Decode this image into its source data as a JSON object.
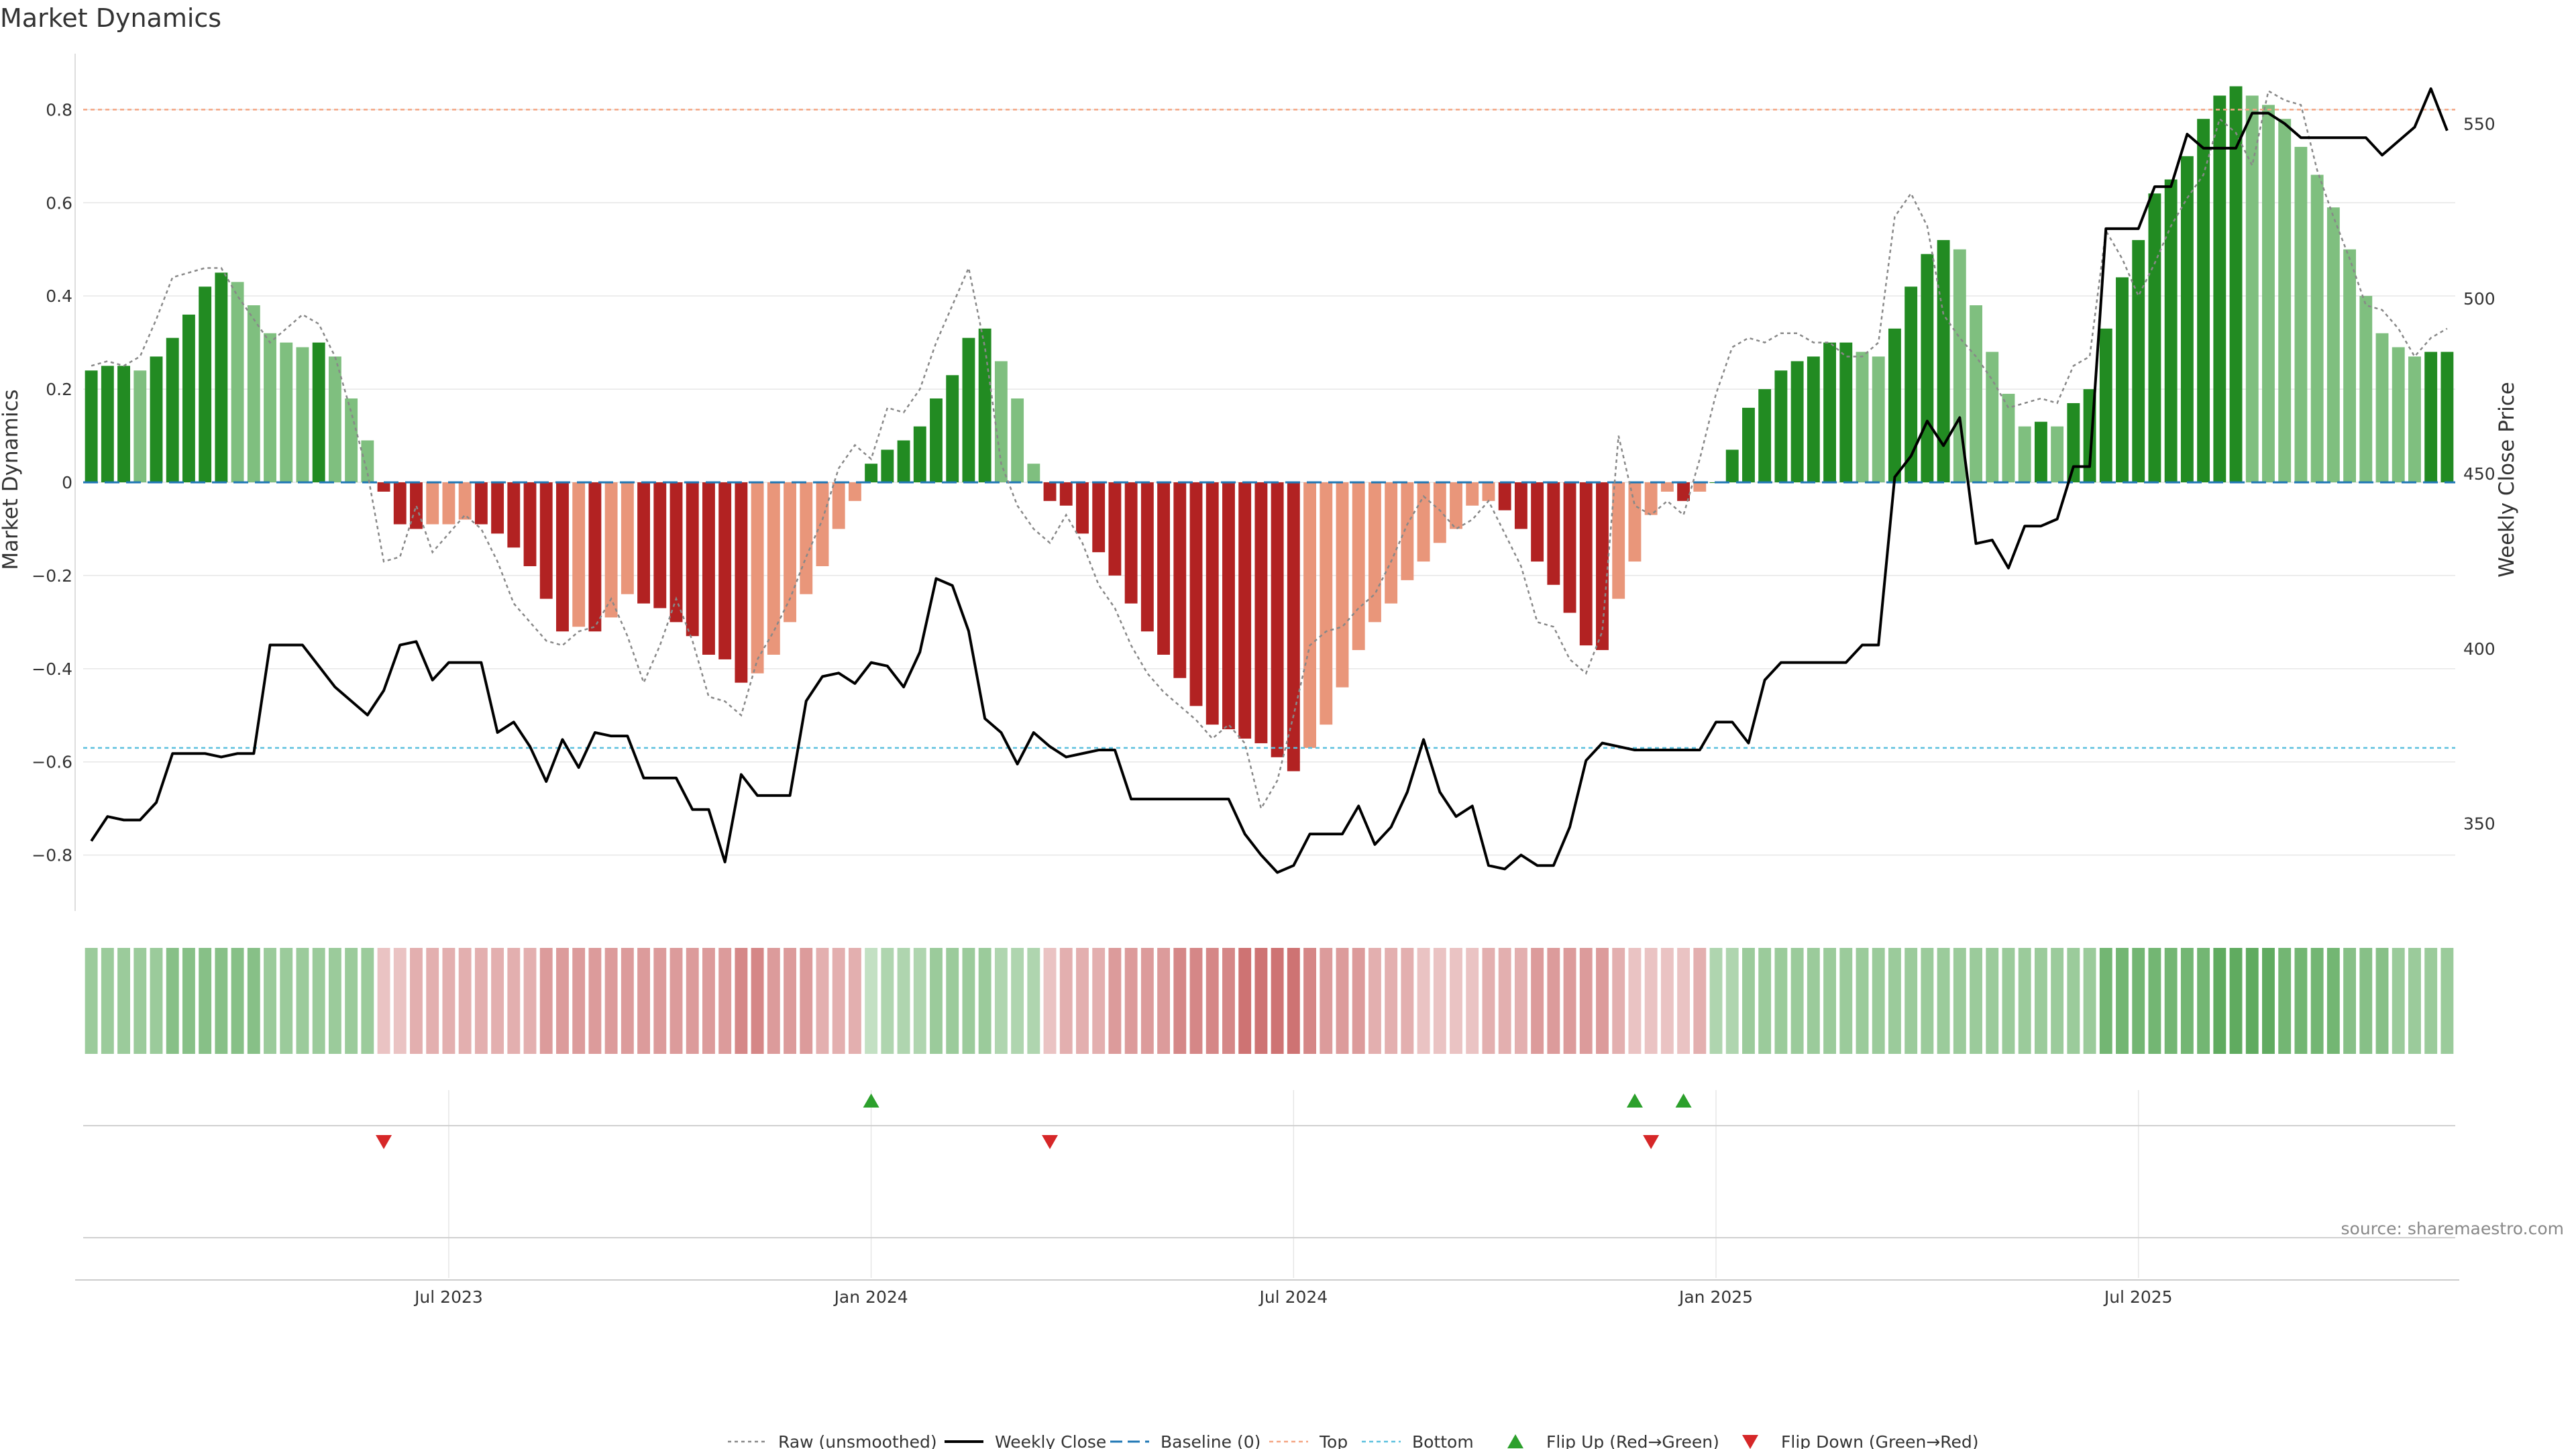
{
  "chart_data": {
    "type": "bar",
    "title": "Market Dynamics",
    "ylabel_left": "Market Dynamics",
    "ylabel_right": "Weekly Close Price",
    "source": "source: sharemaestro.com",
    "ylim_left": [
      -0.92,
      0.92
    ],
    "ylim_right": [
      325,
      570
    ],
    "yticks_left": [
      -0.8,
      -0.6,
      -0.4,
      -0.2,
      0,
      0.2,
      0.4,
      0.6,
      0.8
    ],
    "ytick_labels_left": [
      "−0.8",
      "−0.6",
      "−0.4",
      "−0.2",
      "0",
      "0.2",
      "0.4",
      "0.6",
      "0.8"
    ],
    "yticks_right": [
      350,
      400,
      450,
      500,
      550
    ],
    "ytick_labels_right": [
      "350",
      "400",
      "450",
      "500",
      "550"
    ],
    "xticks": [
      {
        "label": "Jul 2023",
        "index": 22
      },
      {
        "label": "Jan 2024",
        "index": 48
      },
      {
        "label": "Jul 2024",
        "index": 74
      },
      {
        "label": "Jan 2025",
        "index": 100
      },
      {
        "label": "Jul 2025",
        "index": 126
      }
    ],
    "top_level": 0.8,
    "bottom_level": -0.57,
    "colors": {
      "strong_green": "#228B22",
      "light_green": "#7FBF7F",
      "strong_red": "#B22222",
      "light_red": "#E9967A",
      "close_line": "#000000",
      "raw_line": "#888888",
      "baseline": "#1F77B4",
      "top": "#F4A582",
      "bottom": "#5BC0DE",
      "flip_up": "#2CA02C",
      "flip_down": "#D62728",
      "grid": "#E6E6E6"
    },
    "series": [
      {
        "name": "Market Dynamics (smoothed)",
        "values": [
          0.24,
          0.25,
          0.25,
          0.24,
          0.27,
          0.31,
          0.36,
          0.42,
          0.45,
          0.43,
          0.38,
          0.32,
          0.3,
          0.29,
          0.3,
          0.27,
          0.18,
          0.09,
          -0.02,
          -0.09,
          -0.1,
          -0.09,
          -0.09,
          -0.08,
          -0.09,
          -0.11,
          -0.14,
          -0.18,
          -0.25,
          -0.32,
          -0.31,
          -0.32,
          -0.29,
          -0.24,
          -0.26,
          -0.27,
          -0.3,
          -0.33,
          -0.37,
          -0.38,
          -0.43,
          -0.41,
          -0.37,
          -0.3,
          -0.24,
          -0.18,
          -0.1,
          -0.04,
          0.04,
          0.07,
          0.09,
          0.12,
          0.18,
          0.23,
          0.31,
          0.33,
          0.26,
          0.18,
          0.04,
          -0.04,
          -0.05,
          -0.11,
          -0.15,
          -0.2,
          -0.26,
          -0.32,
          -0.37,
          -0.42,
          -0.48,
          -0.52,
          -0.53,
          -0.55,
          -0.56,
          -0.59,
          -0.62,
          -0.57,
          -0.52,
          -0.44,
          -0.36,
          -0.3,
          -0.26,
          -0.21,
          -0.17,
          -0.13,
          -0.1,
          -0.05,
          -0.04,
          -0.06,
          -0.1,
          -0.17,
          -0.22,
          -0.28,
          -0.35,
          -0.36,
          -0.25,
          -0.17,
          -0.07,
          -0.02,
          -0.04,
          -0.02,
          0.0,
          0.07,
          0.16,
          0.2,
          0.24,
          0.26,
          0.27,
          0.3,
          0.3,
          0.28,
          0.27,
          0.33,
          0.42,
          0.49,
          0.52,
          0.5,
          0.38,
          0.28,
          0.19,
          0.12,
          0.13,
          0.12,
          0.17,
          0.2,
          0.33,
          0.44,
          0.52,
          0.62,
          0.65,
          0.7,
          0.78,
          0.83,
          0.85,
          0.83,
          0.81,
          0.78,
          0.72,
          0.66,
          0.59,
          0.5,
          0.4,
          0.32,
          0.29,
          0.27,
          0.28,
          0.28
        ]
      },
      {
        "name": "Raw (unsmoothed)",
        "values": [
          0.25,
          0.26,
          0.25,
          0.27,
          0.35,
          0.44,
          0.45,
          0.46,
          0.46,
          0.4,
          0.35,
          0.3,
          0.33,
          0.36,
          0.34,
          0.27,
          0.15,
          0.02,
          -0.17,
          -0.16,
          -0.05,
          -0.15,
          -0.11,
          -0.07,
          -0.1,
          -0.17,
          -0.26,
          -0.3,
          -0.34,
          -0.35,
          -0.32,
          -0.31,
          -0.25,
          -0.33,
          -0.43,
          -0.35,
          -0.25,
          -0.34,
          -0.46,
          -0.47,
          -0.5,
          -0.38,
          -0.32,
          -0.25,
          -0.16,
          -0.08,
          0.03,
          0.08,
          0.05,
          0.16,
          0.15,
          0.2,
          0.3,
          0.38,
          0.46,
          0.29,
          0.04,
          -0.05,
          -0.1,
          -0.13,
          -0.07,
          -0.13,
          -0.22,
          -0.27,
          -0.35,
          -0.41,
          -0.45,
          -0.48,
          -0.51,
          -0.55,
          -0.52,
          -0.56,
          -0.7,
          -0.64,
          -0.5,
          -0.35,
          -0.32,
          -0.31,
          -0.27,
          -0.24,
          -0.17,
          -0.09,
          -0.03,
          -0.06,
          -0.1,
          -0.08,
          -0.04,
          -0.11,
          -0.18,
          -0.3,
          -0.31,
          -0.38,
          -0.41,
          -0.32,
          0.1,
          -0.05,
          -0.07,
          -0.04,
          -0.07,
          0.05,
          0.19,
          0.29,
          0.31,
          0.3,
          0.32,
          0.32,
          0.3,
          0.3,
          0.27,
          0.27,
          0.3,
          0.57,
          0.62,
          0.55,
          0.36,
          0.31,
          0.27,
          0.22,
          0.16,
          0.17,
          0.18,
          0.17,
          0.25,
          0.27,
          0.54,
          0.48,
          0.4,
          0.47,
          0.55,
          0.61,
          0.66,
          0.78,
          0.75,
          0.68,
          0.84,
          0.82,
          0.81,
          0.67,
          0.57,
          0.48,
          0.38,
          0.37,
          0.33,
          0.27,
          0.31,
          0.33
        ]
      },
      {
        "name": "Weekly Close",
        "values": [
          345,
          352,
          351,
          351,
          356,
          370,
          370,
          370,
          369,
          370,
          370,
          401,
          401,
          401,
          395,
          389,
          385,
          381,
          388,
          401,
          402,
          391,
          396,
          396,
          396,
          376,
          379,
          372,
          362,
          374,
          366,
          376,
          375,
          375,
          363,
          363,
          363,
          354,
          354,
          339,
          364,
          358,
          358,
          358,
          385,
          392,
          393,
          390,
          396,
          395,
          389,
          399,
          420,
          418,
          405,
          380,
          376,
          367,
          376,
          372,
          369,
          370,
          371,
          371,
          357,
          357,
          357,
          357,
          357,
          357,
          357,
          347,
          341,
          336,
          338,
          347,
          347,
          347,
          355,
          344,
          349,
          359,
          374,
          359,
          352,
          355,
          338,
          337,
          341,
          338,
          338,
          349,
          368,
          373,
          372,
          371,
          371,
          371,
          371,
          371,
          379,
          379,
          373,
          391,
          396,
          396,
          396,
          396,
          396,
          401,
          401,
          449,
          455,
          465,
          458,
          466,
          430,
          431,
          423,
          435,
          435,
          437,
          452,
          452,
          520,
          520,
          520,
          532,
          532,
          547,
          543,
          543,
          543,
          553,
          553,
          550,
          546,
          546,
          546,
          546,
          546,
          541,
          545,
          549,
          560,
          548
        ]
      }
    ],
    "zone_intensity": [
      0.5,
      0.5,
      0.5,
      0.5,
      0.5,
      0.6,
      0.6,
      0.6,
      0.6,
      0.6,
      0.6,
      0.5,
      0.5,
      0.5,
      0.5,
      0.5,
      0.5,
      0.5,
      0.3,
      0.3,
      0.4,
      0.4,
      0.4,
      0.4,
      0.4,
      0.4,
      0.4,
      0.4,
      0.5,
      0.5,
      0.5,
      0.5,
      0.5,
      0.5,
      0.5,
      0.5,
      0.5,
      0.5,
      0.5,
      0.5,
      0.6,
      0.6,
      0.5,
      0.5,
      0.5,
      0.4,
      0.4,
      0.4,
      0.3,
      0.4,
      0.4,
      0.4,
      0.5,
      0.5,
      0.5,
      0.5,
      0.4,
      0.4,
      0.4,
      0.3,
      0.4,
      0.4,
      0.4,
      0.5,
      0.5,
      0.5,
      0.5,
      0.6,
      0.6,
      0.6,
      0.6,
      0.7,
      0.7,
      0.7,
      0.7,
      0.6,
      0.5,
      0.5,
      0.5,
      0.4,
      0.4,
      0.4,
      0.3,
      0.3,
      0.3,
      0.3,
      0.4,
      0.4,
      0.4,
      0.5,
      0.5,
      0.5,
      0.5,
      0.5,
      0.4,
      0.3,
      0.3,
      0.3,
      0.3,
      0.4,
      0.4,
      0.4,
      0.5,
      0.5,
      0.5,
      0.5,
      0.5,
      0.5,
      0.5,
      0.5,
      0.5,
      0.5,
      0.5,
      0.5,
      0.5,
      0.5,
      0.5,
      0.5,
      0.5,
      0.5,
      0.5,
      0.5,
      0.5,
      0.5,
      0.7,
      0.7,
      0.7,
      0.7,
      0.7,
      0.7,
      0.7,
      0.8,
      0.8,
      0.8,
      0.8,
      0.7,
      0.7,
      0.7,
      0.7,
      0.6,
      0.6,
      0.6,
      0.5,
      0.5,
      0.5,
      0.5
    ],
    "flip_up": [
      48,
      95,
      98
    ],
    "flip_down": [
      18,
      59,
      96
    ],
    "legend": [
      {
        "label": "Raw (unsmoothed)",
        "style": "raw"
      },
      {
        "label": "Weekly Close",
        "style": "close"
      },
      {
        "label": "Baseline (0)",
        "style": "baseline"
      },
      {
        "label": "Top",
        "style": "top"
      },
      {
        "label": "Bottom",
        "style": "bottom"
      },
      {
        "label": "Flip Up (Red→Green)",
        "style": "flip-up"
      },
      {
        "label": "Flip Down (Green→Red)",
        "style": "flip-down"
      }
    ]
  }
}
